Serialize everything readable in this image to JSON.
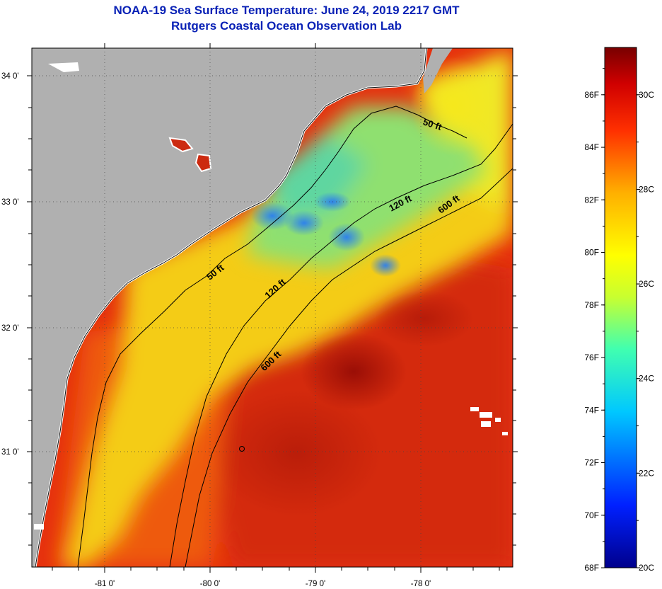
{
  "header": {
    "title": "NOAA-19 Sea Surface Temperature:  June 24, 2019 2217 GMT",
    "subtitle": "Rutgers Coastal Ocean Observation Lab"
  },
  "map": {
    "lat_labels": [
      "34 0'",
      "33 0'",
      "32 0'",
      "31 0'"
    ],
    "lon_labels": [
      "-81 0'",
      "-80 0'",
      "-79 0'",
      "-78 0'"
    ],
    "contours": [
      "50 ft",
      "50 ft",
      "120 ft",
      "120 ft",
      "600 ft",
      "600 ft"
    ],
    "colors": {
      "land": "#b0b0b0",
      "warm": "#e8280c",
      "hot": "#a81208",
      "mid": "#f5d010",
      "cool": "#7fe070",
      "cold": "#2a8cf0"
    }
  },
  "colorbar": {
    "f_labels": [
      "86F",
      "84F",
      "82F",
      "80F",
      "78F",
      "76F",
      "74F",
      "72F",
      "70F",
      "68F"
    ],
    "c_labels": [
      "30C",
      "28C",
      "26C",
      "24C",
      "22C",
      "20C"
    ],
    "range_f": [
      68,
      87.8
    ],
    "range_c": [
      20,
      31
    ]
  }
}
